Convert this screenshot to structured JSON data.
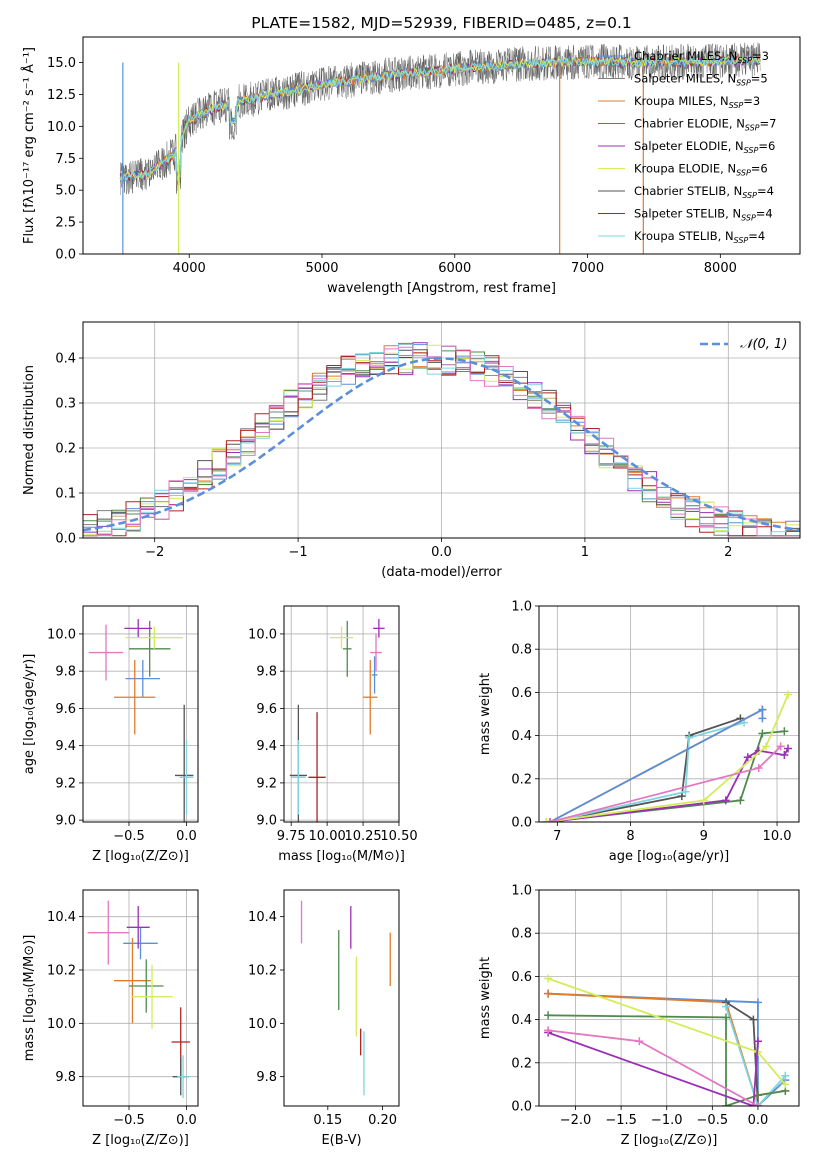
{
  "chart_data": [
    {
      "id": "spectrum",
      "type": "line",
      "title": "PLATE=1582, MJD=52939, FIBERID=0485, z=0.1",
      "xlabel": "wavelength [Angstrom, rest frame]",
      "ylabel": "Flux [fλ10⁻¹⁷ erg cm⁻² s⁻¹ Å⁻¹]",
      "xlim": [
        3200,
        8600
      ],
      "ylim": [
        0,
        17
      ],
      "xticks": [
        4000,
        5000,
        6000,
        7000,
        8000
      ],
      "yticks": [
        0.0,
        2.5,
        5.0,
        7.5,
        10.0,
        12.5,
        15.0
      ],
      "legend_position": "top-right",
      "legend": [
        {
          "label": "Chabrier MILES, N_SSP=3",
          "color": "#5b8fd9"
        },
        {
          "label": "Salpeter MILES, N_SSP=5",
          "color": "#7f7f7f"
        },
        {
          "label": "Kroupa MILES, N_SSP=3",
          "color": "#e07b2a"
        },
        {
          "label": "Chabrier ELODIE, N_SSP=7",
          "color": "#4f8a4f"
        },
        {
          "label": "Salpeter ELODIE, N_SSP=6",
          "color": "#9b30b5"
        },
        {
          "label": "Kroupa ELODIE, N_SSP=6",
          "color": "#d4ec5a"
        },
        {
          "label": "Chabrier STELIB, N_SSP=4",
          "color": "#555555"
        },
        {
          "label": "Salpeter STELIB, N_SSP=4",
          "color": "#b22222"
        },
        {
          "label": "Kroupa STELIB, N_SSP=4",
          "color": "#7fd4e0"
        }
      ],
      "continuum": {
        "x": [
          3500,
          3700,
          3900,
          4000,
          4200,
          4500,
          5000,
          5500,
          6000,
          6500,
          7000,
          7500,
          8000,
          8300
        ],
        "y": [
          6.0,
          6.3,
          8.0,
          10.5,
          11.5,
          12.2,
          13.3,
          14.0,
          14.5,
          14.9,
          15.1,
          15.0,
          15.1,
          15.2
        ]
      },
      "dropouts": [
        {
          "x": 3500,
          "color": "#5b8fd9"
        },
        {
          "x": 3920,
          "color": "#d4ec5a"
        },
        {
          "x": 6790,
          "color": "#e07b2a"
        },
        {
          "x": 7420,
          "color": "#e07b2a"
        }
      ]
    },
    {
      "id": "residuals",
      "type": "histogram",
      "xlabel": "(data-model)/error",
      "ylabel": "Normed distribution",
      "xlim": [
        -2.5,
        2.5
      ],
      "ylim": [
        0,
        0.48
      ],
      "xticks": [
        -2,
        -1,
        0,
        1,
        2
      ],
      "yticks": [
        0.0,
        0.1,
        0.2,
        0.3,
        0.4
      ],
      "grid": true,
      "legend_position": "top-right",
      "reference": {
        "label": "𝒩(0, 1)",
        "color": "#5b8fd9"
      },
      "bin_width": 0.1,
      "bin_start": -2.5,
      "bins_base": [
        0.018,
        0.022,
        0.026,
        0.03,
        0.035,
        0.04,
        0.046,
        0.052,
        0.059,
        0.067,
        0.075,
        0.084,
        0.094,
        0.104,
        0.115,
        0.127,
        0.139,
        0.151,
        0.164,
        0.177,
        0.19,
        0.204,
        0.218,
        0.232,
        0.245,
        0.259,
        0.272,
        0.285,
        0.297,
        0.309,
        0.32,
        0.331,
        0.341,
        0.35,
        0.358,
        0.365,
        0.372,
        0.378,
        0.383,
        0.387,
        0.39,
        0.393,
        0.395,
        0.397,
        0.398,
        0.399,
        0.399,
        0.399,
        0.398,
        0.397,
        0.395,
        0.393,
        0.39,
        0.387,
        0.383,
        0.378,
        0.372,
        0.365,
        0.358,
        0.35,
        0.341,
        0.331,
        0.32,
        0.309,
        0.297,
        0.285,
        0.272,
        0.259,
        0.245,
        0.232,
        0.218,
        0.204,
        0.19,
        0.177,
        0.164,
        0.151,
        0.139,
        0.127,
        0.115,
        0.104,
        0.094,
        0.084,
        0.075,
        0.067,
        0.059,
        0.052,
        0.046,
        0.04,
        0.035,
        0.03,
        0.026,
        0.022,
        0.018,
        0.016,
        0.014,
        0.012,
        0.011,
        0.01,
        0.009,
        0.008
      ]
    },
    {
      "id": "age_vs_Z",
      "type": "scatter",
      "xlabel": "Z [log₁₀(Z/Z⊙)]",
      "ylabel": "age  [log₁₀(age/yr)]",
      "xlim": [
        -0.9,
        0.1
      ],
      "ylim": [
        8.99,
        10.15
      ],
      "xticks": [
        -0.5,
        0.0
      ],
      "yticks": [
        9.0,
        9.2,
        9.4,
        9.6,
        9.8,
        10.0
      ],
      "grid": true,
      "points": [
        {
          "x": -0.7,
          "y": 9.9,
          "xerr": 0.15,
          "yerr": 0.15,
          "color": "#e377c2"
        },
        {
          "x": -0.38,
          "y": 9.76,
          "xerr": 0.15,
          "yerr": 0.1,
          "color": "#5b8fd9"
        },
        {
          "x": -0.45,
          "y": 9.66,
          "xerr": 0.18,
          "yerr": 0.2,
          "color": "#e07b2a"
        },
        {
          "x": -0.32,
          "y": 9.92,
          "xerr": 0.18,
          "yerr": 0.15,
          "color": "#4f8a4f"
        },
        {
          "x": -0.42,
          "y": 10.03,
          "xerr": 0.12,
          "yerr": 0.05,
          "color": "#9b30b5"
        },
        {
          "x": -0.28,
          "y": 9.98,
          "xerr": 0.25,
          "yerr": 0.06,
          "color": "#d4ec5a"
        },
        {
          "x": -0.02,
          "y": 9.24,
          "xerr": 0.08,
          "yerr": 0.38,
          "color": "#555555"
        },
        {
          "x": 0.0,
          "y": 9.23,
          "xerr": 0.06,
          "yerr": 0.2,
          "color": "#7fd4e0"
        }
      ]
    },
    {
      "id": "age_vs_mass",
      "type": "scatter",
      "xlabel": "mass [log₁₀(M/M⊙)]",
      "xlim": [
        9.7,
        10.5
      ],
      "ylim": [
        8.99,
        10.15
      ],
      "xticks": [
        9.75,
        10.0,
        10.25,
        10.5
      ],
      "xtick_labels": [
        "9.75",
        "10.00",
        "10.25",
        "10.50"
      ],
      "yticks": [
        9.0,
        9.2,
        9.4,
        9.6,
        9.8,
        10.0
      ],
      "grid": true,
      "points": [
        {
          "x": 10.33,
          "y": 9.78,
          "xerr": 0.02,
          "yerr": 0.1,
          "color": "#5b8fd9"
        },
        {
          "x": 10.3,
          "y": 9.66,
          "xerr": 0.05,
          "yerr": 0.2,
          "color": "#e07b2a"
        },
        {
          "x": 10.14,
          "y": 9.92,
          "xerr": 0.03,
          "yerr": 0.15,
          "color": "#4f8a4f"
        },
        {
          "x": 10.36,
          "y": 10.03,
          "xerr": 0.04,
          "yerr": 0.05,
          "color": "#9b30b5"
        },
        {
          "x": 10.1,
          "y": 9.98,
          "xerr": 0.08,
          "yerr": 0.06,
          "color": "#d4ec5a"
        },
        {
          "x": 10.34,
          "y": 9.9,
          "xerr": 0.04,
          "yerr": 0.1,
          "color": "#e377c2"
        },
        {
          "x": 9.8,
          "y": 9.24,
          "xerr": 0.06,
          "yerr": 0.38,
          "color": "#555555"
        },
        {
          "x": 9.93,
          "y": 9.23,
          "xerr": 0.06,
          "yerr": 0.35,
          "color": "#b22222"
        },
        {
          "x": 9.8,
          "y": 9.23,
          "xerr": 0.05,
          "yerr": 0.2,
          "color": "#7fd4e0"
        }
      ]
    },
    {
      "id": "weight_vs_age",
      "type": "line",
      "xlabel": "age  [log₁₀(age/yr)]",
      "ylabel": "mass weight",
      "xlim": [
        6.75,
        10.3
      ],
      "ylim": [
        0,
        1
      ],
      "xticks": [
        7,
        8,
        9,
        10
      ],
      "yticks": [
        0.0,
        0.2,
        0.4,
        0.6,
        0.8,
        1.0
      ],
      "grid": true,
      "series": [
        {
          "color": "#555555",
          "x": [
            6.9,
            8.7,
            8.8,
            9.5
          ],
          "y": [
            0.0,
            0.12,
            0.4,
            0.48
          ]
        },
        {
          "color": "#7fd4e0",
          "x": [
            6.9,
            8.75,
            8.8,
            9.55
          ],
          "y": [
            0.0,
            0.14,
            0.39,
            0.46
          ]
        },
        {
          "color": "#e07b2a",
          "x": [
            6.9,
            9.8
          ],
          "y": [
            0.0,
            0.52
          ]
        },
        {
          "color": "#5b8fd9",
          "x": [
            6.9,
            9.8,
            9.8
          ],
          "y": [
            0.0,
            0.52,
            0.48
          ]
        },
        {
          "color": "#4f8a4f",
          "x": [
            6.85,
            9.5,
            9.8,
            10.1
          ],
          "y": [
            0.0,
            0.1,
            0.41,
            0.42
          ]
        },
        {
          "color": "#9b30b5",
          "x": [
            6.9,
            9.3,
            9.6,
            9.75,
            10.1,
            10.15
          ],
          "y": [
            0.0,
            0.1,
            0.3,
            0.33,
            0.31,
            0.34
          ]
        },
        {
          "color": "#d4ec5a",
          "x": [
            6.85,
            9.0,
            9.85,
            10.15
          ],
          "y": [
            0.0,
            0.1,
            0.35,
            0.59
          ]
        },
        {
          "color": "#e377c2",
          "x": [
            6.9,
            9.75,
            10.05
          ],
          "y": [
            0.0,
            0.25,
            0.35
          ]
        }
      ]
    },
    {
      "id": "mass_vs_Z",
      "type": "scatter",
      "xlabel": "Z [log₁₀(Z/Z⊙)]",
      "ylabel": "mass [log₁₀(M/M⊙)]",
      "xlim": [
        -0.9,
        0.1
      ],
      "ylim": [
        9.69,
        10.5
      ],
      "xticks": [
        -0.5,
        0.0
      ],
      "yticks": [
        9.8,
        10.0,
        10.2,
        10.4
      ],
      "grid": true,
      "points": [
        {
          "x": -0.68,
          "y": 10.34,
          "xerr": 0.18,
          "yerr": 0.12,
          "color": "#e377c2"
        },
        {
          "x": -0.4,
          "y": 10.3,
          "xerr": 0.15,
          "yerr": 0.06,
          "color": "#5b8fd9"
        },
        {
          "x": -0.47,
          "y": 10.16,
          "xerr": 0.16,
          "yerr": 0.16,
          "color": "#e07b2a"
        },
        {
          "x": -0.42,
          "y": 10.36,
          "xerr": 0.1,
          "yerr": 0.08,
          "color": "#9b30b5"
        },
        {
          "x": -0.35,
          "y": 10.14,
          "xerr": 0.15,
          "yerr": 0.1,
          "color": "#4f8a4f"
        },
        {
          "x": -0.3,
          "y": 10.1,
          "xerr": 0.18,
          "yerr": 0.12,
          "color": "#d4ec5a"
        },
        {
          "x": -0.05,
          "y": 9.93,
          "xerr": 0.08,
          "yerr": 0.13,
          "color": "#b22222"
        },
        {
          "x": -0.05,
          "y": 9.8,
          "xerr": 0.07,
          "yerr": 0.07,
          "color": "#555555"
        },
        {
          "x": -0.03,
          "y": 9.8,
          "xerr": 0.05,
          "yerr": 0.08,
          "color": "#7fd4e0"
        }
      ]
    },
    {
      "id": "mass_vs_ebv",
      "type": "scatter",
      "xlabel": "E(B-V)",
      "xlim": [
        0.11,
        0.215
      ],
      "ylim": [
        9.69,
        10.5
      ],
      "xticks": [
        0.15,
        0.2
      ],
      "xtick_labels": [
        "0.15",
        "0.20"
      ],
      "yticks": [
        9.8,
        10.0,
        10.2,
        10.4
      ],
      "grid": false,
      "points": [
        {
          "x": 0.126,
          "y": 10.38,
          "xerr": 0,
          "yerr": 0.08,
          "color": "#e377c2"
        },
        {
          "x": 0.16,
          "y": 10.2,
          "xerr": 0,
          "yerr": 0.15,
          "color": "#4f8a4f"
        },
        {
          "x": 0.171,
          "y": 10.36,
          "xerr": 0,
          "yerr": 0.08,
          "color": "#9b30b5"
        },
        {
          "x": 0.176,
          "y": 10.1,
          "xerr": 0,
          "yerr": 0.15,
          "color": "#d4ec5a"
        },
        {
          "x": 0.18,
          "y": 9.93,
          "xerr": 0,
          "yerr": 0.05,
          "color": "#b22222"
        },
        {
          "x": 0.183,
          "y": 9.85,
          "xerr": 0,
          "yerr": 0.12,
          "color": "#7fd4e0"
        },
        {
          "x": 0.207,
          "y": 10.24,
          "xerr": 0,
          "yerr": 0.1,
          "color": "#e07b2a"
        }
      ]
    },
    {
      "id": "weight_vs_Z",
      "type": "line",
      "xlabel": "Z [log₁₀(Z/Z⊙)]",
      "ylabel": "mass weight",
      "xlim": [
        -2.4,
        0.45
      ],
      "ylim": [
        0,
        1
      ],
      "xticks": [
        -2.0,
        -1.5,
        -1.0,
        -0.5,
        0.0
      ],
      "yticks": [
        0.0,
        0.2,
        0.4,
        0.6,
        0.8,
        1.0
      ],
      "grid": true,
      "series": [
        {
          "color": "#5b8fd9",
          "x": [
            -2.3,
            0.0,
            0.0,
            0.3
          ],
          "y": [
            0.52,
            0.48,
            0.0,
            0.12
          ]
        },
        {
          "color": "#e07b2a",
          "x": [
            -2.3,
            -0.35,
            0.0,
            0.0,
            0.3
          ],
          "y": [
            0.52,
            0.48,
            0.0,
            0.05,
            0.07
          ]
        },
        {
          "color": "#555555",
          "x": [
            -0.35,
            -0.05,
            0.0
          ],
          "y": [
            0.48,
            0.4,
            0.0
          ]
        },
        {
          "color": "#7fd4e0",
          "x": [
            -0.35,
            0.0,
            0.3
          ],
          "y": [
            0.46,
            0.0,
            0.14
          ]
        },
        {
          "color": "#4f8a4f",
          "x": [
            -2.3,
            -0.35,
            -0.35,
            0.0,
            0.3
          ],
          "y": [
            0.42,
            0.41,
            0.0,
            0.05,
            0.07
          ]
        },
        {
          "color": "#d4ec5a",
          "x": [
            -2.3,
            0.0,
            0.3
          ],
          "y": [
            0.59,
            0.25,
            0.1
          ]
        },
        {
          "color": "#9b30b5",
          "x": [
            -2.3,
            -0.05,
            0.0
          ],
          "y": [
            0.34,
            0.0,
            0.3
          ]
        },
        {
          "color": "#e377c2",
          "x": [
            -2.3,
            -1.3,
            0.0
          ],
          "y": [
            0.35,
            0.3,
            0.0
          ]
        }
      ]
    }
  ]
}
